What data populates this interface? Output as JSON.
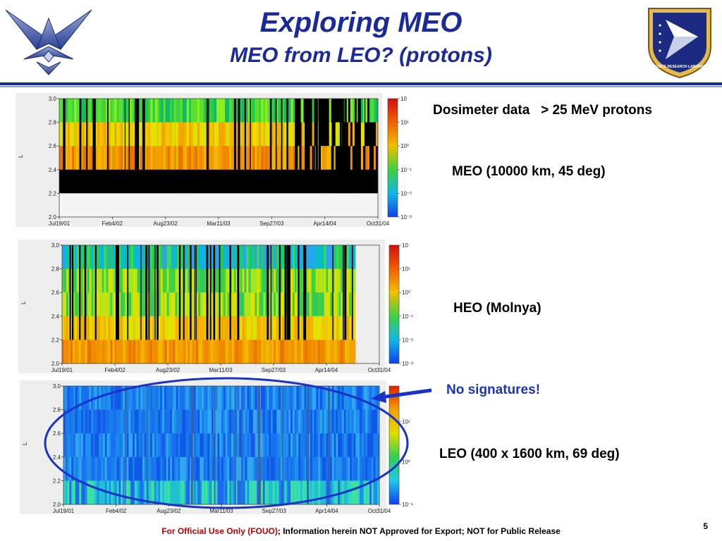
{
  "header": {
    "title": "Exploring MEO",
    "subtitle": "MEO from LEO? (protons)"
  },
  "logos": {
    "left": "air-force-wings-logo",
    "right": "air-force-research-laboratory-shield",
    "right_text": "AIR FORCE RESEARCH LABORATORY"
  },
  "notes": {
    "dosimeter": "Dosimeter data   > 25 MeV protons",
    "meo": "MEO (10000 km, 45 deg)",
    "heo": "HEO (Molnya)",
    "no_signatures": "No signatures!",
    "leo": "LEO (400 x 1600 km, 69 deg)"
  },
  "footer": {
    "fouo": "For Official Use Only (FOUO)",
    "rest": "; Information herein NOT Approved for Export;  NOT for Public Release",
    "page": "5"
  },
  "colors": {
    "title": "#1a2a9c",
    "highlight": "#1a32c8",
    "fouo": "#c00000"
  },
  "chart_data": [
    {
      "type": "heatmap",
      "name": "MEO",
      "ylabel": "L",
      "y_ticks": [
        "2.0",
        "2.2",
        "2.4",
        "2.6",
        "2.8",
        "3.0"
      ],
      "x_ticks": [
        "Jul19/01",
        "Feb4/02",
        "Aug23/02",
        "Mar11/03",
        "Sep27/03",
        "Apr14/04",
        "Oct31/04"
      ],
      "ylim": [
        2.0,
        3.0
      ],
      "colorbar_ticks": [
        "10",
        "10¹",
        "10⁰",
        "10⁻¹",
        "10⁻²",
        "10⁻³"
      ],
      "rows": [
        {
          "L": [
            2.8,
            3.0
          ],
          "level": "green"
        },
        {
          "L": [
            2.6,
            2.8
          ],
          "level": "yellow-orange"
        },
        {
          "L": [
            2.4,
            2.6
          ],
          "level": "orange"
        },
        {
          "L": [
            2.2,
            2.4
          ],
          "level": "black (no data)"
        },
        {
          "L": [
            2.0,
            2.2
          ],
          "level": "white (no data)"
        }
      ]
    },
    {
      "type": "heatmap",
      "name": "HEO",
      "ylabel": "L",
      "y_ticks": [
        "2.0",
        "2.2",
        "2.4",
        "2.6",
        "2.8",
        "3.0"
      ],
      "x_ticks": [
        "Jul19/01",
        "Feb4/02",
        "Aug23/02",
        "Mar11/03",
        "Sep27/03",
        "Apr14/04",
        "Oct31/04"
      ],
      "ylim": [
        2.0,
        3.0
      ],
      "colorbar_ticks": [
        "10",
        "10¹",
        "10⁰",
        "10⁻¹",
        "10⁻²",
        "10⁻³"
      ],
      "rows": [
        {
          "L": [
            2.8,
            3.0
          ],
          "level": "blue-green"
        },
        {
          "L": [
            2.6,
            2.8
          ],
          "level": "green-yellow"
        },
        {
          "L": [
            2.4,
            2.6
          ],
          "level": "green-yellow"
        },
        {
          "L": [
            2.2,
            2.4
          ],
          "level": "yellow-orange"
        },
        {
          "L": [
            2.0,
            2.2
          ],
          "level": "orange"
        }
      ]
    },
    {
      "type": "heatmap",
      "name": "LEO",
      "ylabel": "L",
      "y_ticks": [
        "2.0",
        "2.2",
        "2.4",
        "2.6",
        "2.8",
        "3.0"
      ],
      "x_ticks": [
        "Jul19/01",
        "Feb4/02",
        "Aug23/02",
        "Mar11/03",
        "Sep27/03",
        "Apr14/04",
        "Oct31/04"
      ],
      "ylim": [
        2.0,
        3.0
      ],
      "colorbar_ticks": [
        "10¹",
        "10⁰",
        "10⁻¹"
      ],
      "rows": [
        {
          "L": [
            2.8,
            3.0
          ],
          "level": "blue"
        },
        {
          "L": [
            2.6,
            2.8
          ],
          "level": "blue"
        },
        {
          "L": [
            2.4,
            2.6
          ],
          "level": "blue"
        },
        {
          "L": [
            2.2,
            2.4
          ],
          "level": "blue"
        },
        {
          "L": [
            2.0,
            2.2
          ],
          "level": "blue-cyan"
        }
      ]
    }
  ]
}
